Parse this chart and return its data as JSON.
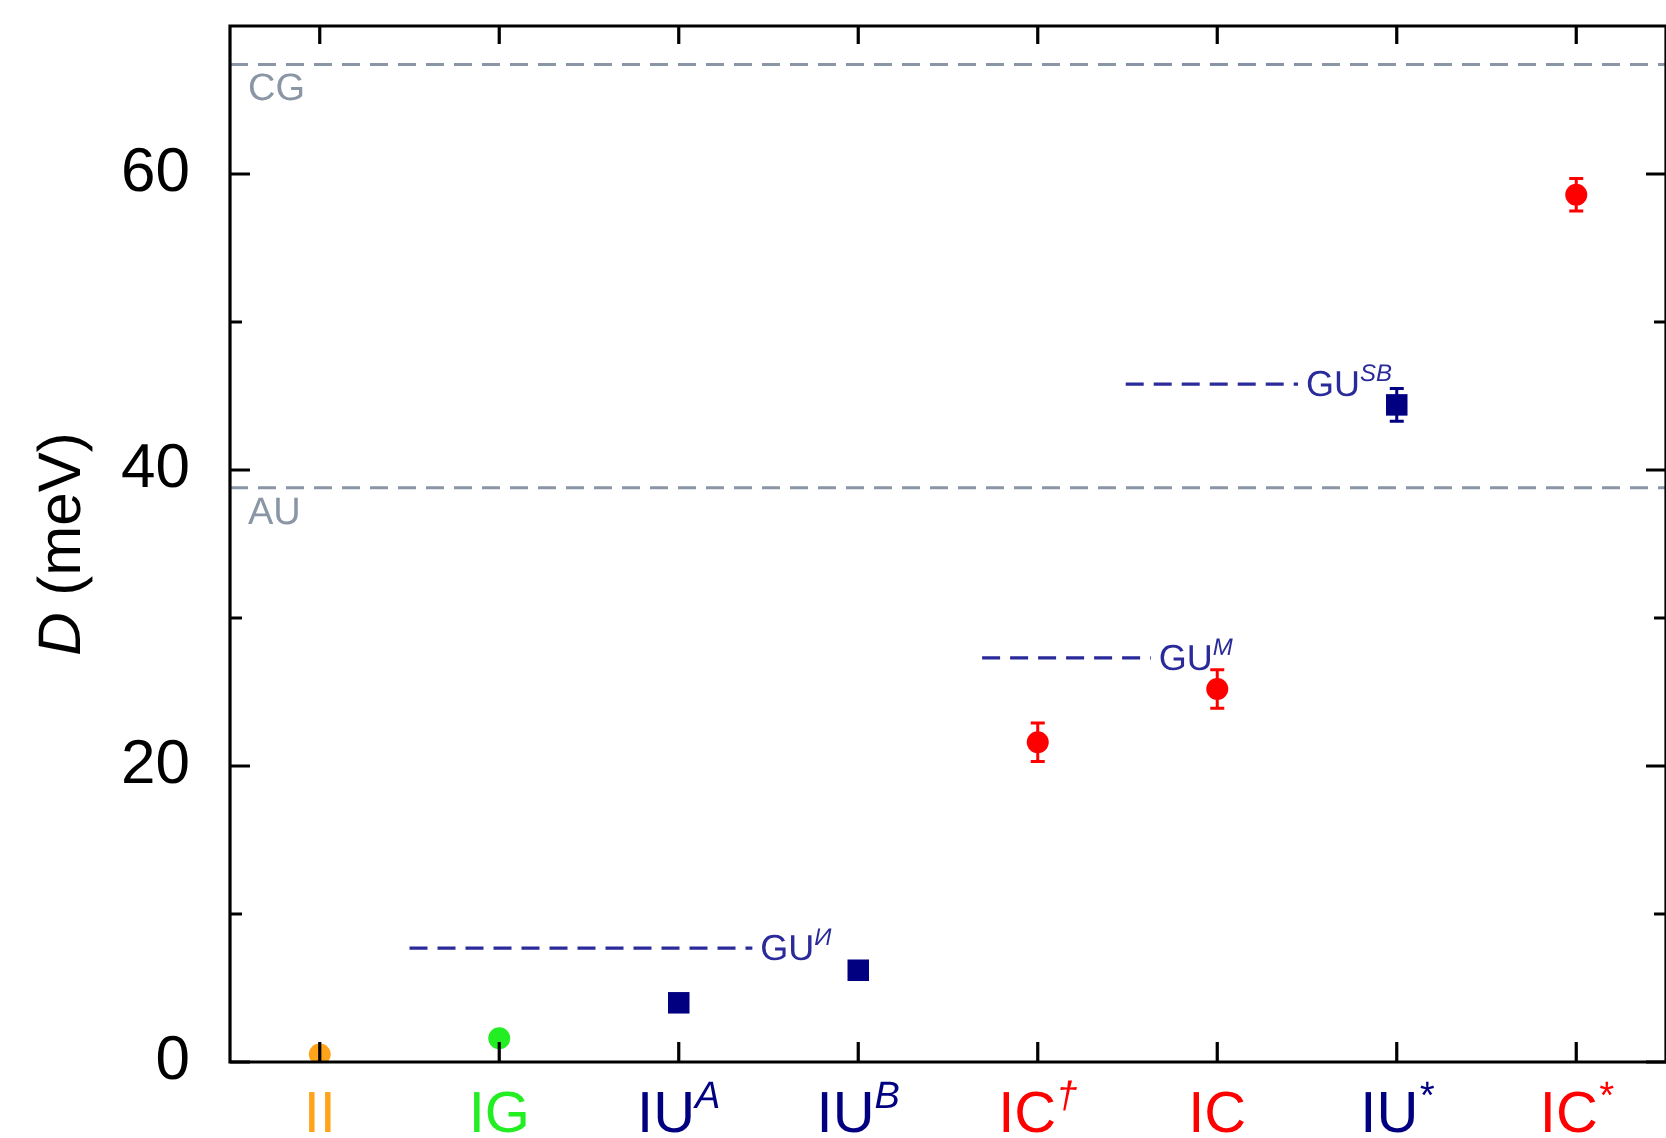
{
  "chart_data": {
    "type": "scatter",
    "ylabel": "D (meV)",
    "categories": [
      "II",
      "IG",
      "IU$^{A}$",
      "IU$^{B}$",
      "IC$^{†}$",
      "IC",
      "IU$^{*}$",
      "IC$^{*}$"
    ],
    "series": [
      {
        "color": "#ffa31a",
        "marker": "circle",
        "values": [
          0.5,
          null,
          null,
          null,
          null,
          null,
          null,
          null
        ]
      },
      {
        "color": "#22ee22",
        "marker": "circle",
        "values": [
          null,
          1.6,
          null,
          null,
          null,
          null,
          null,
          null
        ]
      },
      {
        "color": "#000080",
        "marker": "square",
        "values": [
          null,
          null,
          4.0,
          6.2,
          null,
          null,
          44.4,
          null
        ],
        "errors": [
          null,
          null,
          null,
          null,
          null,
          null,
          1.1,
          null
        ]
      },
      {
        "color": "#ff0000",
        "marker": "circle",
        "values": [
          null,
          null,
          null,
          null,
          21.6,
          25.2,
          null,
          58.6
        ],
        "errors": [
          null,
          null,
          null,
          null,
          1.3,
          1.3,
          null,
          1.1
        ]
      }
    ],
    "ylim": [
      0,
      70
    ],
    "yticks": [
      0,
      {
        "value": 10,
        "label": null
      },
      20,
      {
        "value": 30,
        "label": null
      },
      40,
      {
        "value": 50,
        "label": null
      },
      60
    ],
    "ref_lines": [
      {
        "axis": "y",
        "value": 67.4,
        "label": "CG",
        "color": "#8a96a6",
        "line_style": "dashed"
      },
      {
        "axis": "y",
        "value": 38.8,
        "label": "AU",
        "color": "#8a96a6",
        "line_style": "dashed"
      },
      {
        "axis": "y",
        "value": 7.7,
        "label": "GU$^{И}$",
        "color": "#2a2a9a",
        "line_style": "dashed"
      },
      {
        "axis": "y",
        "value": 27.3,
        "label": "GU$^{M}$",
        "color": "#2a2a9a",
        "line_style": "dashed"
      },
      {
        "axis": "y",
        "value": 45.8,
        "label": "GU$^{SB}$",
        "color": "#2a2a9a",
        "line_style": "dashed"
      }
    ],
    "grid": false,
    "legend": false
  }
}
